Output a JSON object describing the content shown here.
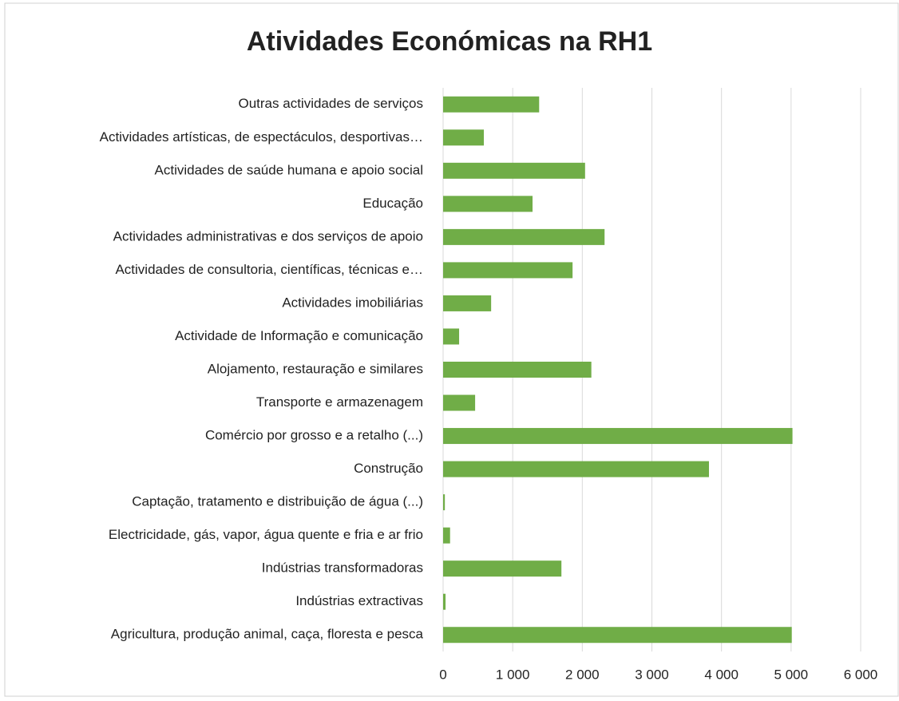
{
  "chart_data": {
    "type": "bar",
    "orientation": "horizontal",
    "title": "Atividades Económicas na RH1",
    "categories": [
      "Outras actividades de serviços",
      "Actividades artísticas, de espectáculos, desportivas…",
      "Actividades de saúde humana e apoio social",
      "Educação",
      "Actividades administrativas e dos serviços de apoio",
      "Actividades de consultoria, científicas, técnicas e…",
      "Actividades imobiliárias",
      "Actividade de Informação e comunicação",
      "Alojamento, restauração e similares",
      "Transporte e armazenagem",
      "Comércio por grosso e a retalho (...)",
      "Construção",
      "Captação, tratamento e distribuição de água (...)",
      "Electricidade, gás, vapor, água quente e fria e ar frio",
      "Indústrias transformadoras",
      "Indústrias extractivas",
      "Agricultura, produção animal, caça, floresta e pesca"
    ],
    "values": [
      1380,
      585,
      2040,
      1285,
      2320,
      1860,
      690,
      230,
      2130,
      460,
      5020,
      3820,
      25,
      100,
      1700,
      35,
      5010
    ],
    "color": "#70ad47",
    "xlim": [
      0,
      6000
    ],
    "xticks": [
      0,
      {
        "value": 1000,
        "label": "1 000"
      },
      {
        "value": 2000,
        "label": "2 000"
      },
      {
        "value": 3000,
        "label": "3 000"
      },
      {
        "value": 4000,
        "label": "4 000"
      },
      {
        "value": 5000,
        "label": "5 000"
      },
      {
        "value": 6000,
        "label": "6 000"
      }
    ],
    "grid": true
  }
}
